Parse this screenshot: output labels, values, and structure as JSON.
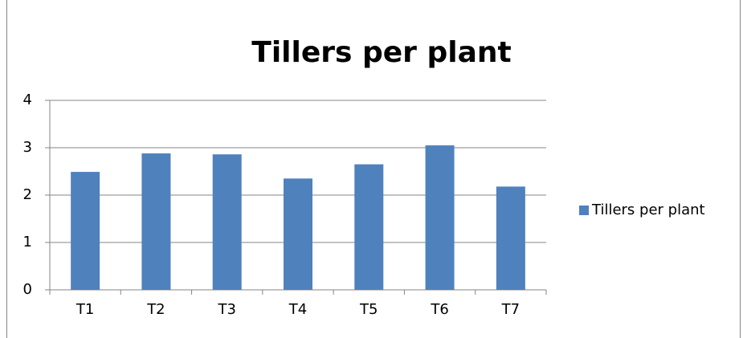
{
  "chart_data": {
    "type": "bar",
    "title": "Tillers per plant",
    "categories": [
      "T1",
      "T2",
      "T3",
      "T4",
      "T5",
      "T6",
      "T7"
    ],
    "series": [
      {
        "name": "Tillers per plant",
        "color": "#4f81bd",
        "values": [
          2.49,
          2.88,
          2.86,
          2.35,
          2.65,
          3.05,
          2.18
        ]
      }
    ],
    "ylim": [
      0,
      4
    ],
    "yticks": [
      0,
      1,
      2,
      3,
      4
    ],
    "grid": true,
    "legend": "right"
  }
}
